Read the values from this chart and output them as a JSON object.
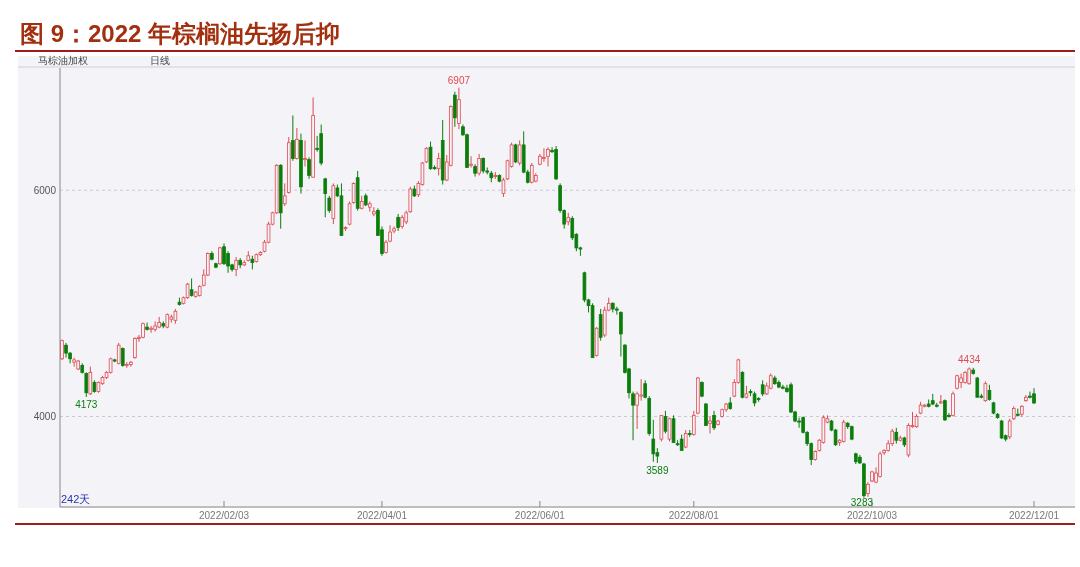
{
  "chart_data": {
    "type": "candlestick",
    "title": "图 9：2022 年棕榈油先扬后抑",
    "annotations": [
      "马棕油加权",
      "日线",
      "242天",
      {
        "text": "6907",
        "y": 6907
      },
      {
        "text": "4173",
        "y": 4173
      },
      {
        "text": "3589",
        "y": 3589
      },
      {
        "text": "3283",
        "y": 3283
      },
      {
        "text": "4434",
        "y": 4434
      }
    ],
    "colors": [
      "#e04a50",
      "#0b7d0b",
      "#0b7d0b",
      "#e04a50",
      "#e04a50",
      "#0b7d0b",
      "#0b7d0b",
      "#e04a50",
      "#0b7d0b",
      "#e04a50",
      "#e04a50",
      "#e04a50",
      "#e04a50",
      "#0b7d0b",
      "#e04a50",
      "#0b7d0b",
      "#e04a50",
      "#e04a50",
      "#e04a50",
      "#e04a50",
      "#e04a50",
      "#0b7d0b",
      "#e04a50",
      "#e04a50",
      "#e04a50",
      "#0b7d0b",
      "#e04a50",
      "#e04a50",
      "#e04a50",
      "#0b7d0b",
      "#e04a50",
      "#e04a50",
      "#0b7d0b",
      "#e04a50",
      "#e04a50",
      "#e04a50",
      "#e04a50",
      "#0b7d0b",
      "#0b7d0b",
      "#e04a50",
      "#0b7d0b",
      "#0b7d0b",
      "#0b7d0b",
      "#e04a50",
      "#0b7d0b",
      "#e04a50",
      "#e04a50",
      "#0b7d0b",
      "#e04a50",
      "#e04a50",
      "#e04a50",
      "#e04a50",
      "#e04a50",
      "#e04a50",
      "#0b7d0b",
      "#e04a50",
      "#e04a50",
      "#0b7d0b",
      "#e04a50",
      "#0b7d0b",
      "#e04a50",
      "#0b7d0b",
      "#e04a50",
      "#0b7d0b",
      "#0b7d0b",
      "#0b7d0b",
      "#0b7d0b",
      "#e04a50",
      "#0b7d0b",
      "#0b7d0b",
      "#e04a50",
      "#e04a50",
      "#e04a50",
      "#0b7d0b",
      "#e04a50",
      "#0b7d0b",
      "#e04a50",
      "#e04a50",
      "#0b7d0b",
      "#0b7d0b",
      "#e04a50",
      "#e04a50",
      "#e04a50",
      "#0b7d0b",
      "#e04a50",
      "#e04a50",
      "#e04a50",
      "#0b7d0b",
      "#e04a50",
      "#e04a50",
      "#e04a50",
      "#0b7d0b",
      "#0b7d0b",
      "#e04a50",
      "#0b7d0b",
      "#e04a50",
      "#e04a50",
      "#0b7d0b",
      "#e04a50",
      "#0b7d0b",
      "#0b7d0b",
      "#e04a50",
      "#0b7d0b",
      "#e04a50",
      "#0b7d0b",
      "#0b7d0b",
      "#0b7d0b",
      "#e04a50",
      "#0b7d0b",
      "#e04a50",
      "#e04a50",
      "#e04a50",
      "#0b7d0b",
      "#e04a50",
      "#0b7d0b",
      "#0b7d0b",
      "#e04a50",
      "#e04a50",
      "#e04a50",
      "#e04a50",
      "#e04a50",
      "#0b7d0b",
      "#0b7d0b",
      "#0b7d0b",
      "#0b7d0b",
      "#e04a50",
      "#0b7d0b",
      "#0b7d0b",
      "#0b7d0b",
      "#0b7d0b",
      "#0b7d0b",
      "#0b7d0b",
      "#e04a50",
      "#0b7d0b",
      "#e04a50",
      "#e04a50",
      "#0b7d0b",
      "#0b7d0b",
      "#0b7d0b",
      "#0b7d0b",
      "#0b7d0b",
      "#0b7d0b",
      "#e04a50",
      "#e04a50",
      "#0b7d0b",
      "#0b7d0b",
      "#0b7d0b",
      "#0b7d0b",
      "#e04a50",
      "#0b7d0b",
      "#e04a50",
      "#0b7d0b",
      "#0b7d0b",
      "#0b7d0b",
      "#e04a50",
      "#0b7d0b",
      "#e04a50",
      "#e04a50",
      "#0b7d0b",
      "#0b7d0b",
      "#e04a50",
      "#0b7d0b",
      "#e04a50",
      "#e04a50",
      "#e04a50",
      "#0b7d0b",
      "#e04a50",
      "#e04a50",
      "#0b7d0b",
      "#e04a50",
      "#0b7d0b",
      "#0b7d0b",
      "#0b7d0b",
      "#0b7d0b",
      "#e04a50",
      "#e04a50",
      "#0b7d0b",
      "#0b7d0b",
      "#0b7d0b",
      "#0b7d0b",
      "#0b7d0b",
      "#0b7d0b",
      "#0b7d0b",
      "#0b7d0b",
      "#0b7d0b",
      "#0b7d0b",
      "#e04a50",
      "#e04a50",
      "#e04a50",
      "#e04a50",
      "#0b7d0b",
      "#0b7d0b",
      "#e04a50",
      "#e04a50",
      "#0b7d0b",
      "#0b7d0b",
      "#0b7d0b",
      "#0b7d0b",
      "#0b7d0b",
      "#e04a50",
      "#e04a50",
      "#e04a50",
      "#e04a50",
      "#e04a50",
      "#e04a50",
      "#e04a50",
      "#0b7d0b",
      "#e04a50",
      "#0b7d0b",
      "#e04a50",
      "#e04a50",
      "#e04a50",
      "#e04a50",
      "#e04a50",
      "#0b7d0b",
      "#0b7d0b",
      "#0b7d0b",
      "#e04a50",
      "#0b7d0b",
      "#0b7d0b",
      "#e04a50",
      "#e04a50",
      "#e04a50",
      "#e04a50",
      "#e04a50",
      "#0b7d0b",
      "#0b7d0b",
      "#0b7d0b",
      "#e04a50",
      "#0b7d0b",
      "#0b7d0b",
      "#0b7d0b",
      "#0b7d0b",
      "#0b7d0b",
      "#e04a50",
      "#e04a50",
      "#0b7d0b",
      "#e04a50",
      "#e04a50",
      "#0b7d0b",
      "#0b7d0b"
    ],
    "ylim": [
      3200,
      7080
    ],
    "yticks": [
      4000,
      6000
    ],
    "grid": "y",
    "categories": [
      null,
      null,
      null,
      null,
      null,
      null,
      null,
      null,
      null,
      null,
      null,
      null,
      null,
      null,
      null,
      null,
      null,
      null,
      null,
      null,
      null,
      null,
      null,
      null,
      null,
      null,
      null,
      null,
      null,
      null,
      null,
      null,
      null,
      null,
      null,
      null,
      null,
      null,
      null,
      null,
      "2022/02/03",
      null,
      null,
      null,
      null,
      null,
      null,
      null,
      null,
      null,
      null,
      null,
      null,
      null,
      null,
      null,
      null,
      null,
      null,
      null,
      null,
      null,
      null,
      null,
      null,
      null,
      null,
      null,
      null,
      null,
      null,
      null,
      null,
      null,
      null,
      null,
      null,
      null,
      null,
      "2022/04/01",
      null,
      null,
      null,
      null,
      null,
      null,
      null,
      null,
      null,
      null,
      null,
      null,
      null,
      null,
      null,
      null,
      null,
      null,
      null,
      null,
      null,
      null,
      null,
      null,
      null,
      null,
      null,
      null,
      null,
      null,
      null,
      null,
      null,
      null,
      null,
      null,
      null,
      null,
      "2022/06/01",
      null,
      null,
      null,
      null,
      null,
      null,
      null,
      null,
      null,
      null,
      null,
      null,
      null,
      null,
      null,
      null,
      null,
      null,
      null,
      null,
      null,
      null,
      null,
      null,
      null,
      null,
      null,
      null,
      null,
      null,
      null,
      null,
      null,
      null,
      null,
      null,
      null,
      "2022/08/01",
      null,
      null,
      null,
      null,
      null,
      null,
      null,
      null,
      null,
      null,
      null,
      null,
      null,
      null,
      null,
      null,
      null,
      null,
      null,
      null,
      null,
      null,
      null,
      null,
      null,
      null,
      null,
      null,
      null,
      null,
      null,
      null,
      null,
      null,
      null,
      null,
      null,
      null,
      null,
      null,
      null,
      null,
      null,
      "2022/10/03",
      null,
      null,
      null,
      null,
      null,
      null,
      null,
      null,
      null,
      null,
      null,
      null,
      null,
      null,
      null,
      null,
      null,
      null,
      null,
      null,
      null,
      null,
      null,
      null,
      null,
      null,
      null,
      null,
      null,
      null,
      null,
      null,
      null,
      null,
      null,
      null,
      null,
      null,
      null,
      "2022/12/01"
    ],
    "ohlc": [
      [
        4510,
        4680,
        4500,
        4670
      ],
      [
        4630,
        4650,
        4520,
        4560
      ],
      [
        4560,
        4570,
        4470,
        4510
      ],
      [
        4480,
        4520,
        4440,
        4500
      ],
      [
        4420,
        4500,
        4410,
        4490
      ],
      [
        4450,
        4470,
        4380,
        4390
      ],
      [
        4380,
        4390,
        4173,
        4210
      ],
      [
        4200,
        4440,
        4190,
        4390
      ],
      [
        4300,
        4320,
        4210,
        4220
      ],
      [
        4220,
        4310,
        4210,
        4300
      ],
      [
        4290,
        4360,
        4280,
        4345
      ],
      [
        4345,
        4400,
        4330,
        4390
      ],
      [
        4390,
        4520,
        4380,
        4510
      ],
      [
        4500,
        4510,
        4480,
        4490
      ],
      [
        4470,
        4650,
        4460,
        4630
      ],
      [
        4600,
        4610,
        4440,
        4450
      ],
      [
        4450,
        4480,
        4430,
        4460
      ],
      [
        4460,
        4490,
        4440,
        4480
      ],
      [
        4520,
        4700,
        4510,
        4690
      ],
      [
        4690,
        4720,
        4660,
        4700
      ],
      [
        4700,
        4830,
        4690,
        4820
      ],
      [
        4790,
        4830,
        4760,
        4770
      ],
      [
        4770,
        4800,
        4740,
        4780
      ],
      [
        4770,
        4840,
        4750,
        4800
      ],
      [
        4790,
        4880,
        4780,
        4830
      ],
      [
        4820,
        4840,
        4780,
        4800
      ],
      [
        4790,
        4910,
        4780,
        4900
      ],
      [
        4860,
        4900,
        4830,
        4880
      ],
      [
        4850,
        4950,
        4820,
        4930
      ],
      [
        5010,
        5050,
        4980,
        4990
      ],
      [
        5000,
        5060,
        4990,
        5050
      ],
      [
        5050,
        5180,
        5040,
        5170
      ],
      [
        5120,
        5220,
        5060,
        5070
      ],
      [
        5060,
        5110,
        5050,
        5100
      ],
      [
        5070,
        5160,
        5060,
        5150
      ],
      [
        5160,
        5300,
        5150,
        5250
      ],
      [
        5250,
        5450,
        5240,
        5440
      ],
      [
        5440,
        5460,
        5380,
        5390
      ],
      [
        5350,
        5360,
        5310,
        5320
      ],
      [
        5350,
        5500,
        5340,
        5490
      ],
      [
        5500,
        5530,
        5340,
        5350
      ],
      [
        5440,
        5460,
        5270,
        5330
      ],
      [
        5340,
        5350,
        5280,
        5300
      ],
      [
        5300,
        5410,
        5240,
        5380
      ],
      [
        5380,
        5400,
        5310,
        5340
      ],
      [
        5340,
        5380,
        5330,
        5360
      ],
      [
        5380,
        5460,
        5370,
        5420
      ],
      [
        5390,
        5420,
        5300,
        5360
      ],
      [
        5370,
        5440,
        5360,
        5430
      ],
      [
        5430,
        5460,
        5420,
        5450
      ],
      [
        5460,
        5560,
        5450,
        5540
      ],
      [
        5540,
        5720,
        5530,
        5700
      ],
      [
        5700,
        5810,
        5690,
        5800
      ],
      [
        5800,
        6230,
        5790,
        6220
      ],
      [
        6220,
        6230,
        5660,
        5800
      ],
      [
        5880,
        6060,
        5860,
        5950
      ],
      [
        5980,
        6470,
        5970,
        6420
      ],
      [
        6440,
        6660,
        6260,
        6280
      ],
      [
        6280,
        6550,
        6270,
        6450
      ],
      [
        6440,
        6500,
        5970,
        6030
      ],
      [
        6270,
        6440,
        6210,
        6280
      ],
      [
        6270,
        6290,
        6100,
        6130
      ],
      [
        6115,
        6820,
        6110,
        6660
      ],
      [
        6370,
        6480,
        6340,
        6360
      ],
      [
        6500,
        6580,
        6220,
        6240
      ],
      [
        6100,
        6110,
        5760,
        5970
      ],
      [
        5930,
        5950,
        5800,
        5820
      ],
      [
        5750,
        6060,
        5700,
        6040
      ],
      [
        6020,
        6050,
        5940,
        5950
      ],
      [
        5950,
        6060,
        5600,
        5600
      ],
      [
        5660,
        5680,
        5640,
        5670
      ],
      [
        5700,
        5900,
        5690,
        5880
      ],
      [
        5890,
        6070,
        5880,
        6060
      ],
      [
        6110,
        6170,
        5820,
        5840
      ],
      [
        5840,
        5950,
        5830,
        5900
      ],
      [
        5950,
        5970,
        5860,
        5870
      ],
      [
        5850,
        5900,
        5810,
        5880
      ],
      [
        5790,
        5850,
        5770,
        5810
      ],
      [
        5820,
        5840,
        5600,
        5600
      ],
      [
        5650,
        5680,
        5420,
        5440
      ],
      [
        5450,
        5560,
        5440,
        5540
      ],
      [
        5550,
        5690,
        5540,
        5630
      ],
      [
        5640,
        5680,
        5620,
        5660
      ],
      [
        5760,
        5790,
        5640,
        5670
      ],
      [
        5680,
        5780,
        5660,
        5760
      ],
      [
        5720,
        5820,
        5700,
        5800
      ],
      [
        5810,
        6030,
        5800,
        6010
      ],
      [
        6010,
        6040,
        5940,
        5950
      ],
      [
        5960,
        6080,
        5940,
        6060
      ],
      [
        6050,
        6250,
        6040,
        6240
      ],
      [
        6250,
        6380,
        6240,
        6370
      ],
      [
        6380,
        6430,
        6180,
        6190
      ],
      [
        6200,
        6220,
        6180,
        6190
      ],
      [
        6190,
        6330,
        6130,
        6280
      ],
      [
        6440,
        6620,
        6050,
        6090
      ],
      [
        6090,
        6310,
        6080,
        6250
      ],
      [
        6220,
        6750,
        6210,
        6740
      ],
      [
        6840,
        6870,
        6560,
        6640
      ],
      [
        6590,
        6907,
        6540,
        6800
      ],
      [
        6560,
        6580,
        6480,
        6490
      ],
      [
        6490,
        6500,
        6200,
        6200
      ],
      [
        6220,
        6300,
        6200,
        6230
      ],
      [
        6210,
        6230,
        6120,
        6150
      ],
      [
        6150,
        6320,
        6130,
        6280
      ],
      [
        6280,
        6290,
        6150,
        6170
      ],
      [
        6170,
        6200,
        6140,
        6160
      ],
      [
        6150,
        6170,
        6070,
        6110
      ],
      [
        6120,
        6160,
        6100,
        6130
      ],
      [
        6130,
        6140,
        6070,
        6080
      ],
      [
        5970,
        6110,
        5940,
        6090
      ],
      [
        6100,
        6270,
        6090,
        6260
      ],
      [
        6210,
        6420,
        6200,
        6400
      ],
      [
        6400,
        6410,
        6240,
        6250
      ],
      [
        6240,
        6440,
        6220,
        6400
      ],
      [
        6400,
        6520,
        6150,
        6160
      ],
      [
        6160,
        6180,
        6060,
        6070
      ],
      [
        6070,
        6240,
        6060,
        6220
      ],
      [
        6080,
        6150,
        6070,
        6130
      ],
      [
        6230,
        6320,
        6220,
        6300
      ],
      [
        6280,
        6370,
        6250,
        6290
      ],
      [
        6300,
        6380,
        6210,
        6360
      ],
      [
        6350,
        6380,
        6330,
        6340
      ],
      [
        6360,
        6390,
        6090,
        6100
      ],
      [
        6040,
        6060,
        5800,
        5820
      ],
      [
        5820,
        5830,
        5660,
        5700
      ],
      [
        5720,
        5800,
        5690,
        5760
      ],
      [
        5750,
        5770,
        5560,
        5580
      ],
      [
        5610,
        5620,
        5460,
        5490
      ],
      [
        5490,
        5500,
        5420,
        5480
      ],
      [
        5270,
        5280,
        5010,
        5030
      ],
      [
        5030,
        5040,
        4920,
        4980
      ],
      [
        4980,
        5000,
        4520,
        4520
      ],
      [
        4540,
        4790,
        4530,
        4780
      ],
      [
        4900,
        4950,
        4670,
        4700
      ],
      [
        4720,
        4970,
        4700,
        4940
      ],
      [
        4940,
        5050,
        4930,
        5000
      ],
      [
        5000,
        5010,
        4920,
        4950
      ],
      [
        4950,
        4970,
        4900,
        4940
      ],
      [
        4920,
        4930,
        4530,
        4730
      ],
      [
        4630,
        4640,
        4380,
        4390
      ],
      [
        4420,
        4430,
        4160,
        4210
      ],
      [
        4200,
        4220,
        3790,
        4100
      ],
      [
        4100,
        4220,
        3890,
        4200
      ],
      [
        4180,
        4330,
        4140,
        4190
      ],
      [
        4290,
        4320,
        4160,
        4170
      ],
      [
        4160,
        4180,
        3830,
        3850
      ],
      [
        3800,
        3970,
        3600,
        3670
      ],
      [
        3680,
        3720,
        3589,
        3650
      ],
      [
        3800,
        4010,
        3780,
        4010
      ],
      [
        4000,
        4050,
        3850,
        3870
      ],
      [
        3800,
        3990,
        3780,
        3980
      ],
      [
        3980,
        4010,
        3770,
        3770
      ],
      [
        3760,
        3790,
        3740,
        3750
      ],
      [
        3800,
        3840,
        3700,
        3700
      ],
      [
        3730,
        3880,
        3720,
        3850
      ],
      [
        3850,
        3880,
        3820,
        3840
      ],
      [
        3840,
        4050,
        3830,
        4010
      ],
      [
        4030,
        4350,
        4020,
        4340
      ],
      [
        4300,
        4310,
        4170,
        4180
      ],
      [
        4110,
        4120,
        3920,
        3920
      ],
      [
        3940,
        4000,
        3850,
        3960
      ],
      [
        4010,
        4050,
        3880,
        3900
      ],
      [
        3930,
        3970,
        3920,
        3960
      ],
      [
        4000,
        4070,
        3990,
        4060
      ],
      [
        4060,
        4120,
        4040,
        4110
      ],
      [
        4120,
        4170,
        4060,
        4070
      ],
      [
        4180,
        4330,
        4170,
        4300
      ],
      [
        4300,
        4510,
        4290,
        4500
      ],
      [
        4390,
        4400,
        4160,
        4170
      ],
      [
        4170,
        4270,
        4160,
        4200
      ],
      [
        4220,
        4240,
        4180,
        4210
      ],
      [
        4200,
        4220,
        4090,
        4120
      ],
      [
        4160,
        4170,
        4130,
        4150
      ],
      [
        4280,
        4320,
        4180,
        4200
      ],
      [
        4200,
        4300,
        4190,
        4270
      ],
      [
        4250,
        4380,
        4240,
        4360
      ],
      [
        4340,
        4360,
        4280,
        4290
      ],
      [
        4300,
        4320,
        4250,
        4260
      ],
      [
        4260,
        4280,
        4240,
        4250
      ],
      [
        4250,
        4280,
        4210,
        4220
      ],
      [
        4280,
        4300,
        4030,
        4040
      ],
      [
        4040,
        4050,
        3950,
        3960
      ],
      [
        3960,
        3990,
        3900,
        3950
      ],
      [
        3990,
        4000,
        3850,
        3860
      ],
      [
        3860,
        3870,
        3740,
        3760
      ],
      [
        3760,
        3770,
        3570,
        3620
      ],
      [
        3620,
        3700,
        3610,
        3690
      ],
      [
        3700,
        3800,
        3690,
        3790
      ],
      [
        3770,
        4010,
        3760,
        3990
      ],
      [
        3950,
        4010,
        3940,
        3980
      ],
      [
        3960,
        3970,
        3870,
        3880
      ],
      [
        3880,
        3890,
        3740,
        3750
      ],
      [
        3770,
        3800,
        3740,
        3790
      ],
      [
        3780,
        3970,
        3770,
        3950
      ],
      [
        3940,
        3950,
        3890,
        3910
      ],
      [
        3910,
        3920,
        3790,
        3800
      ],
      [
        3670,
        3680,
        3580,
        3600
      ],
      [
        3640,
        3660,
        3580,
        3590
      ],
      [
        3580,
        3590,
        3283,
        3300
      ],
      [
        3320,
        3420,
        3290,
        3400
      ],
      [
        3430,
        3520,
        3420,
        3510
      ],
      [
        3420,
        3550,
        3410,
        3500
      ],
      [
        3470,
        3690,
        3460,
        3670
      ],
      [
        3680,
        3710,
        3660,
        3700
      ],
      [
        3700,
        3790,
        3690,
        3760
      ],
      [
        3760,
        3890,
        3740,
        3870
      ],
      [
        3860,
        3900,
        3760,
        3790
      ],
      [
        3790,
        3830,
        3780,
        3810
      ],
      [
        3810,
        3820,
        3730,
        3750
      ],
      [
        3660,
        3940,
        3640,
        3920
      ],
      [
        3910,
        4040,
        3900,
        3920
      ],
      [
        3910,
        4020,
        3900,
        4000
      ],
      [
        4030,
        4130,
        4020,
        4100
      ],
      [
        4090,
        4110,
        4080,
        4100
      ],
      [
        4110,
        4150,
        4080,
        4090
      ],
      [
        4140,
        4200,
        4100,
        4110
      ],
      [
        4100,
        4120,
        4080,
        4090
      ],
      [
        4120,
        4190,
        4110,
        4130
      ],
      [
        4140,
        4150,
        3960,
        3970
      ],
      [
        4010,
        4030,
        3990,
        4000
      ],
      [
        4010,
        4220,
        4000,
        4200
      ],
      [
        4250,
        4370,
        4240,
        4360
      ],
      [
        4300,
        4380,
        4250,
        4340
      ],
      [
        4300,
        4400,
        4290,
        4390
      ],
      [
        4290,
        4434,
        4280,
        4420
      ],
      [
        4410,
        4430,
        4370,
        4380
      ],
      [
        4340,
        4350,
        4170,
        4170
      ],
      [
        4180,
        4200,
        4160,
        4170
      ],
      [
        4140,
        4310,
        4130,
        4290
      ],
      [
        4230,
        4280,
        4140,
        4150
      ],
      [
        4120,
        4130,
        4020,
        4030
      ],
      [
        4020,
        4030,
        3980,
        3990
      ],
      [
        3960,
        3970,
        3800,
        3810
      ],
      [
        3830,
        3840,
        3780,
        3800
      ],
      [
        3820,
        3980,
        3800,
        3960
      ],
      [
        3980,
        4090,
        3970,
        4070
      ],
      [
        4020,
        4070,
        4000,
        4010
      ],
      [
        4020,
        4100,
        4000,
        4090
      ],
      [
        4140,
        4190,
        4130,
        4170
      ],
      [
        4180,
        4220,
        4160,
        4170
      ],
      [
        4200,
        4250,
        4110,
        4120
      ]
    ]
  }
}
